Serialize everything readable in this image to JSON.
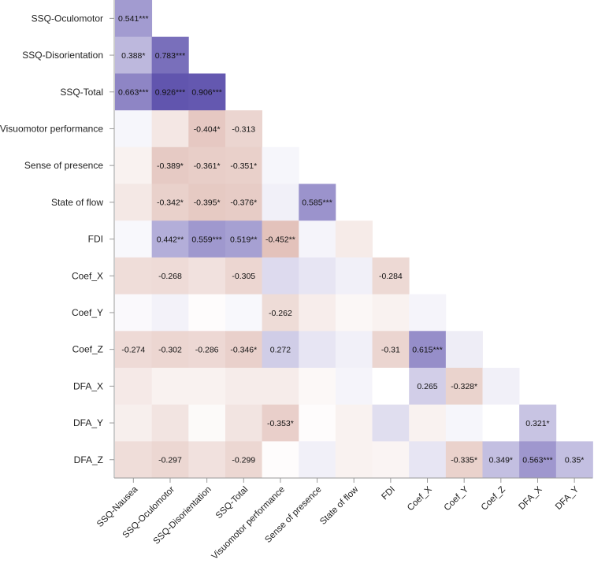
{
  "chart_data": {
    "type": "heatmap",
    "title": "",
    "subtitle": "",
    "row_labels": [
      "SSQ-Oculomotor",
      "SSQ-Disorientation",
      "SSQ-Total",
      "Visuomotor performance",
      "Sense of presence",
      "State of flow",
      "FDI",
      "Coef_X",
      "Coef_Y",
      "Coef_Z",
      "DFA_X",
      "DFA_Y",
      "DFA_Z"
    ],
    "col_labels": [
      "SSQ-Nausea",
      "SSQ-Oculomotor",
      "SSQ-Disorientation",
      "SSQ-Total",
      "Visuomotor performance",
      "Sense of presence",
      "State of flow",
      "FDI",
      "Coef_X",
      "Coef_Y",
      "Coef_Z",
      "DFA_X",
      "DFA_Y"
    ],
    "color_scale": {
      "positive": "#5447a8",
      "negative": "#c07868",
      "zero": "#ffffff",
      "range": [
        -1,
        1
      ]
    },
    "cells": [
      [
        {
          "v": 0.541,
          "label": "0.541***"
        }
      ],
      [
        {
          "v": 0.388,
          "label": "0.388*"
        },
        {
          "v": 0.783,
          "label": "0.783***"
        }
      ],
      [
        {
          "v": 0.663,
          "label": "0.663***"
        },
        {
          "v": 0.926,
          "label": "0.926***"
        },
        {
          "v": 0.906,
          "label": "0.906***"
        }
      ],
      [
        {
          "v": 0.05,
          "label": ""
        },
        {
          "v": -0.18,
          "label": ""
        },
        {
          "v": -0.404,
          "label": "-0.404*"
        },
        {
          "v": -0.313,
          "label": "-0.313"
        }
      ],
      [
        {
          "v": -0.1,
          "label": ""
        },
        {
          "v": -0.389,
          "label": "-0.389*"
        },
        {
          "v": -0.361,
          "label": "-0.361*"
        },
        {
          "v": -0.351,
          "label": "-0.351*"
        },
        {
          "v": 0.05,
          "label": ""
        }
      ],
      [
        {
          "v": -0.17,
          "label": ""
        },
        {
          "v": -0.342,
          "label": "-0.342*"
        },
        {
          "v": -0.395,
          "label": "-0.395*"
        },
        {
          "v": -0.376,
          "label": "-0.376*"
        },
        {
          "v": 0.08,
          "label": ""
        },
        {
          "v": 0.585,
          "label": "0.585***"
        }
      ],
      [
        {
          "v": 0.04,
          "label": ""
        },
        {
          "v": 0.442,
          "label": "0.442**"
        },
        {
          "v": 0.559,
          "label": "0.559***"
        },
        {
          "v": 0.519,
          "label": "0.519**"
        },
        {
          "v": -0.452,
          "label": "-0.452**"
        },
        {
          "v": 0.06,
          "label": ""
        },
        {
          "v": -0.15,
          "label": ""
        }
      ],
      [
        {
          "v": -0.25,
          "label": ""
        },
        {
          "v": -0.268,
          "label": "-0.268"
        },
        {
          "v": -0.22,
          "label": ""
        },
        {
          "v": -0.305,
          "label": "-0.305"
        },
        {
          "v": 0.2,
          "label": ""
        },
        {
          "v": 0.14,
          "label": ""
        },
        {
          "v": 0.08,
          "label": ""
        },
        {
          "v": -0.284,
          "label": "-0.284"
        }
      ],
      [
        {
          "v": 0.03,
          "label": ""
        },
        {
          "v": 0.07,
          "label": ""
        },
        {
          "v": -0.02,
          "label": ""
        },
        {
          "v": 0.04,
          "label": ""
        },
        {
          "v": -0.262,
          "label": "-0.262"
        },
        {
          "v": -0.13,
          "label": ""
        },
        {
          "v": -0.06,
          "label": ""
        },
        {
          "v": -0.1,
          "label": ""
        },
        {
          "v": 0.06,
          "label": ""
        }
      ],
      [
        {
          "v": -0.274,
          "label": "-0.274"
        },
        {
          "v": -0.302,
          "label": "-0.302"
        },
        {
          "v": -0.286,
          "label": "-0.286"
        },
        {
          "v": -0.346,
          "label": "-0.346*"
        },
        {
          "v": 0.272,
          "label": "0.272"
        },
        {
          "v": 0.14,
          "label": ""
        },
        {
          "v": 0.08,
          "label": ""
        },
        {
          "v": -0.31,
          "label": "-0.31"
        },
        {
          "v": 0.615,
          "label": "0.615***"
        },
        {
          "v": 0.1,
          "label": ""
        }
      ],
      [
        {
          "v": -0.16,
          "label": ""
        },
        {
          "v": -0.1,
          "label": ""
        },
        {
          "v": -0.1,
          "label": ""
        },
        {
          "v": -0.14,
          "label": ""
        },
        {
          "v": -0.14,
          "label": ""
        },
        {
          "v": -0.05,
          "label": ""
        },
        {
          "v": 0.06,
          "label": ""
        },
        {
          "v": 0.0,
          "label": ""
        },
        {
          "v": 0.265,
          "label": "0.265"
        },
        {
          "v": -0.328,
          "label": "-0.328*"
        },
        {
          "v": 0.08,
          "label": ""
        }
      ],
      [
        {
          "v": -0.12,
          "label": ""
        },
        {
          "v": -0.2,
          "label": ""
        },
        {
          "v": -0.04,
          "label": ""
        },
        {
          "v": -0.2,
          "label": ""
        },
        {
          "v": -0.353,
          "label": "-0.353*"
        },
        {
          "v": -0.02,
          "label": ""
        },
        {
          "v": -0.1,
          "label": ""
        },
        {
          "v": 0.18,
          "label": ""
        },
        {
          "v": -0.1,
          "label": ""
        },
        {
          "v": 0.05,
          "label": ""
        },
        {
          "v": 0.0,
          "label": ""
        },
        {
          "v": 0.321,
          "label": "0.321*"
        }
      ],
      [
        {
          "v": -0.25,
          "label": ""
        },
        {
          "v": -0.297,
          "label": "-0.297"
        },
        {
          "v": -0.22,
          "label": ""
        },
        {
          "v": -0.299,
          "label": "-0.299"
        },
        {
          "v": -0.02,
          "label": ""
        },
        {
          "v": 0.08,
          "label": ""
        },
        {
          "v": -0.1,
          "label": ""
        },
        {
          "v": -0.08,
          "label": ""
        },
        {
          "v": 0.14,
          "label": ""
        },
        {
          "v": -0.335,
          "label": "-0.335*"
        },
        {
          "v": 0.349,
          "label": "0.349*"
        },
        {
          "v": 0.563,
          "label": "0.563***"
        },
        {
          "v": 0.35,
          "label": "0.35*"
        }
      ]
    ]
  }
}
